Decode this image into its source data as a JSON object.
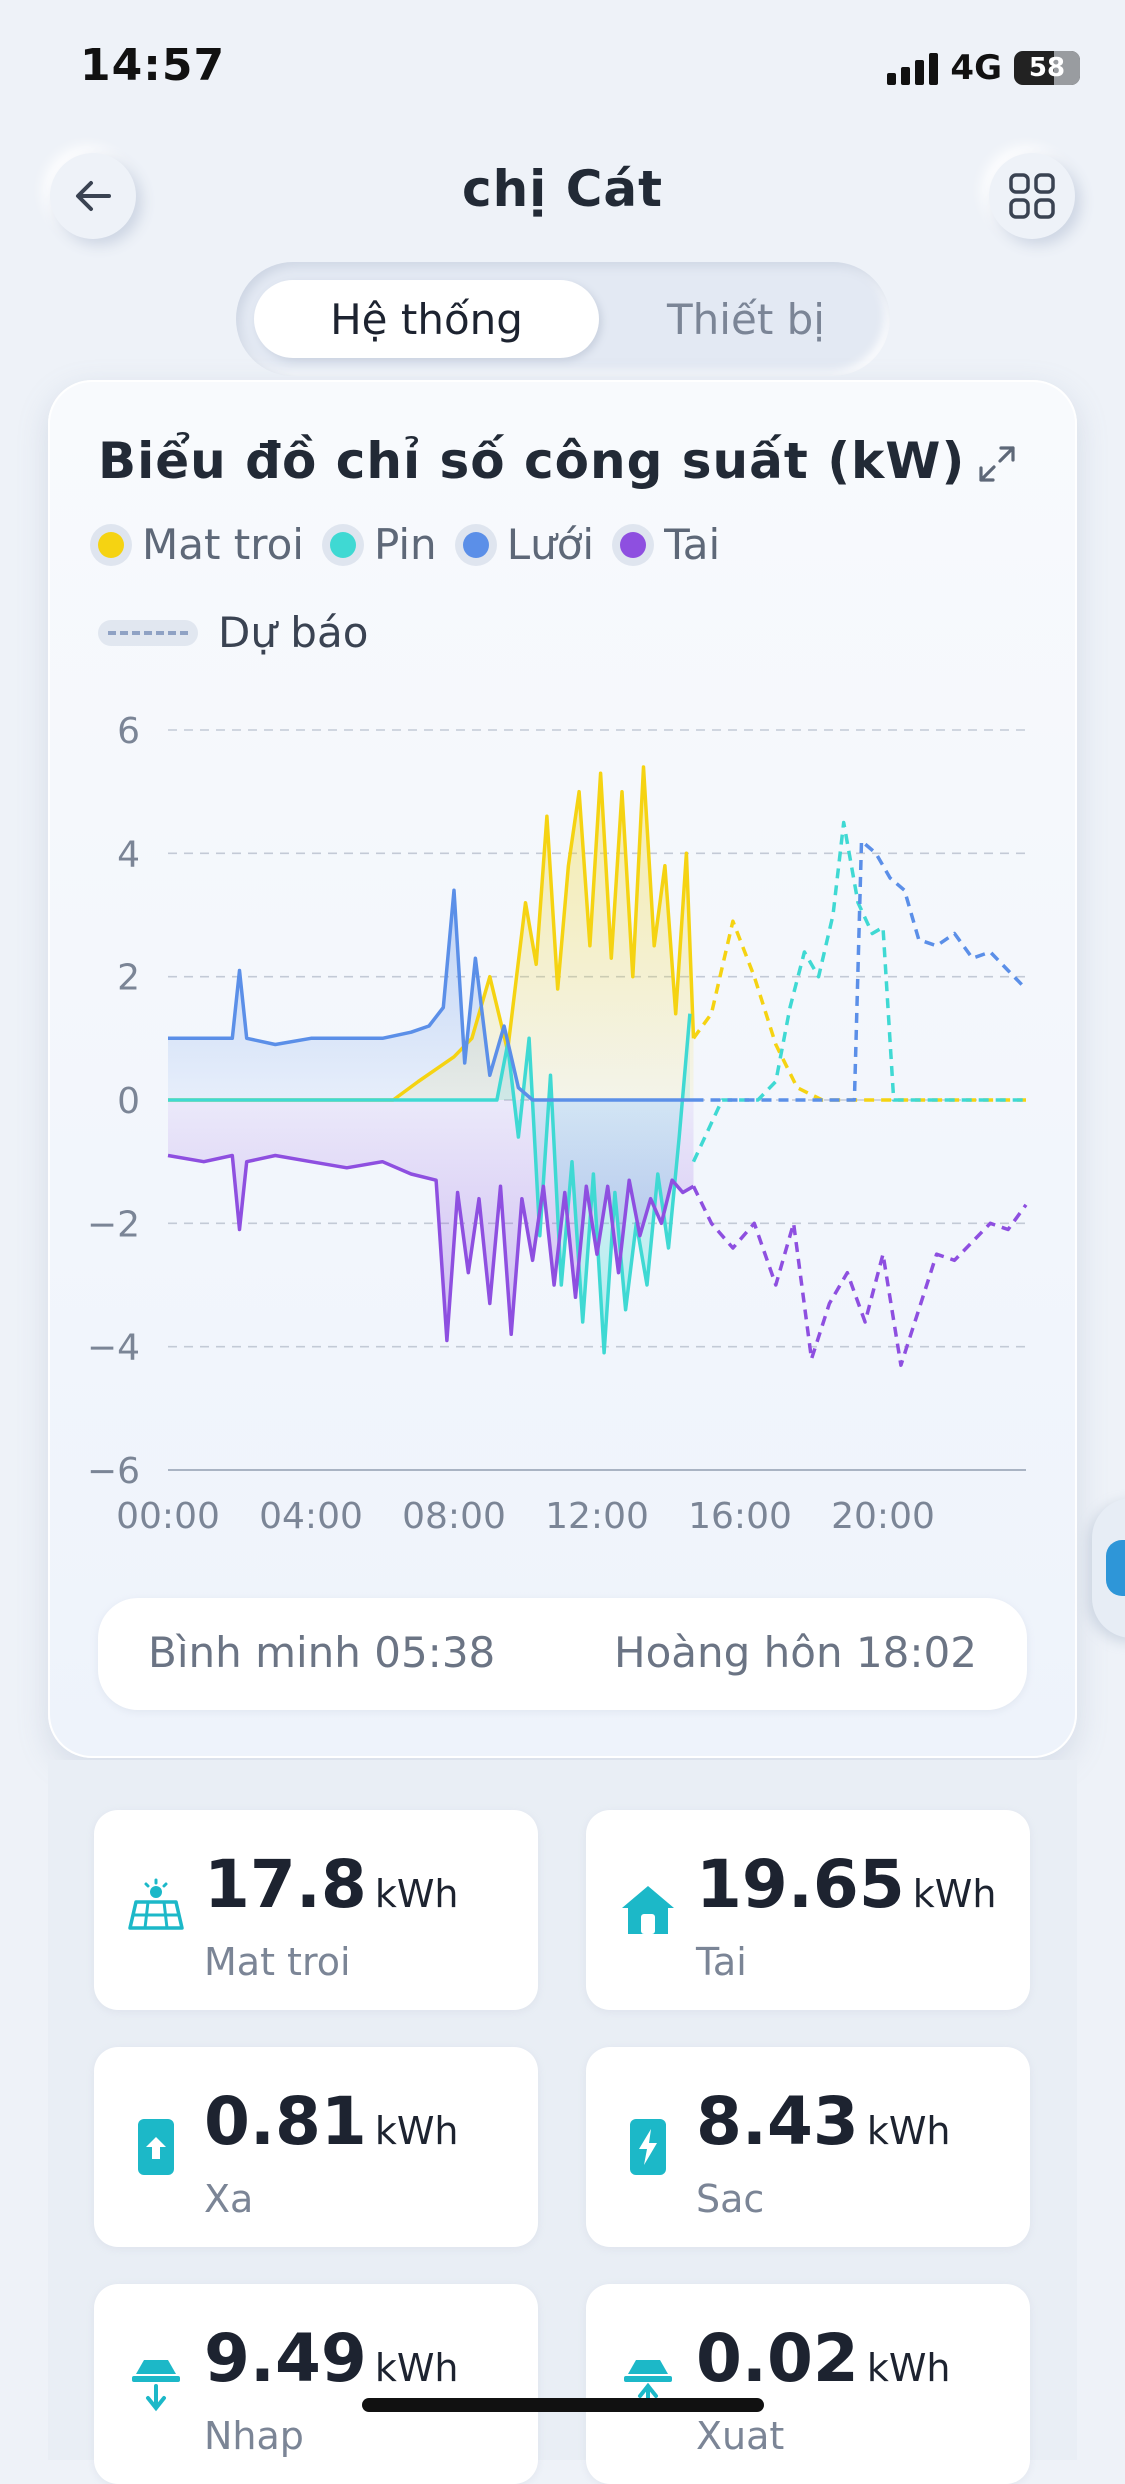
{
  "status_bar": {
    "time": "14:57",
    "network": "4G",
    "battery": "58"
  },
  "header": {
    "title": "chị Cát",
    "back_icon": "arrow-left-icon",
    "menu_icon": "grid-icon"
  },
  "tabs": [
    {
      "label": "Hệ thống",
      "active": true
    },
    {
      "label": "Thiết bị",
      "active": false
    }
  ],
  "chart_card": {
    "title": "Biểu đồ chỉ số công suất (kW)",
    "legend": [
      {
        "label": "Mat troi",
        "color": "#f5d312"
      },
      {
        "label": "Pin",
        "color": "#3fd9d3"
      },
      {
        "label": "Lưới",
        "color": "#5b8fe8"
      },
      {
        "label": "Tai",
        "color": "#8e4fe0"
      }
    ],
    "forecast_label": "Dự báo",
    "sunrise": "Bình minh 05:38",
    "sunset": "Hoàng hôn 18:02"
  },
  "chart_data": {
    "type": "line",
    "ylim": [
      -6,
      6
    ],
    "y_ticks": [
      "6",
      "4",
      "2",
      "0",
      "-2",
      "-4",
      "-6"
    ],
    "x_ticks": [
      "00:00",
      "04:00",
      "08:00",
      "12:00",
      "16:00",
      "20:00"
    ],
    "x_range_hours": [
      0,
      24
    ],
    "actual_until_hour": 14.7,
    "series": [
      {
        "name": "Mat troi",
        "color": "#f5d312",
        "x": [
          0,
          6.3,
          7,
          7.5,
          8,
          8.5,
          9,
          9.5,
          10,
          10.3,
          10.6,
          10.9,
          11.2,
          11.5,
          11.8,
          12.1,
          12.4,
          12.7,
          13,
          13.3,
          13.6,
          13.9,
          14.2,
          14.5,
          14.7
        ],
        "y": [
          0,
          0,
          0.3,
          0.5,
          0.7,
          1.0,
          2.0,
          0.8,
          3.2,
          2.2,
          4.6,
          1.8,
          3.8,
          5.0,
          2.5,
          5.3,
          2.3,
          5.0,
          2.0,
          5.4,
          2.5,
          3.8,
          1.4,
          4.0,
          1.0
        ]
      },
      {
        "name": "Pin",
        "color": "#3fd9d3",
        "x": [
          0,
          9.2,
          9.5,
          9.8,
          10.1,
          10.4,
          10.7,
          11,
          11.3,
          11.6,
          11.9,
          12.2,
          12.5,
          12.8,
          13.1,
          13.4,
          13.7,
          14,
          14.3,
          14.6
        ],
        "y": [
          0,
          0,
          0.9,
          -0.6,
          1.0,
          -2.2,
          0.4,
          -3.0,
          -1.0,
          -3.6,
          -1.2,
          -4.1,
          -1.5,
          -3.4,
          -2.0,
          -3.0,
          -1.2,
          -2.4,
          -0.6,
          1.4
        ]
      },
      {
        "name": "Lưới",
        "color": "#5b8fe8",
        "x": [
          0,
          1,
          1.8,
          2.0,
          2.2,
          3,
          4,
          5,
          6,
          6.8,
          7.3,
          7.7,
          8.0,
          8.3,
          8.6,
          9.0,
          9.4,
          9.8,
          10.2,
          14.7
        ],
        "y": [
          1.0,
          1.0,
          1.0,
          2.1,
          1.0,
          0.9,
          1.0,
          1.0,
          1.0,
          1.1,
          1.2,
          1.5,
          3.4,
          0.6,
          2.3,
          0.4,
          1.2,
          0.2,
          0,
          0
        ]
      },
      {
        "name": "Tai",
        "color": "#8e4fe0",
        "x": [
          0,
          1,
          1.8,
          2.0,
          2.2,
          3,
          4,
          5,
          6,
          6.8,
          7.5,
          7.8,
          8.1,
          8.4,
          8.7,
          9.0,
          9.3,
          9.6,
          9.9,
          10.2,
          10.5,
          10.8,
          11.1,
          11.4,
          11.7,
          12.0,
          12.3,
          12.6,
          12.9,
          13.2,
          13.5,
          13.8,
          14.1,
          14.4,
          14.7
        ],
        "y": [
          -0.9,
          -1.0,
          -0.9,
          -2.1,
          -1.0,
          -0.9,
          -1.0,
          -1.1,
          -1.0,
          -1.2,
          -1.3,
          -3.9,
          -1.5,
          -2.8,
          -1.6,
          -3.3,
          -1.4,
          -3.8,
          -1.6,
          -2.6,
          -1.4,
          -3.0,
          -1.5,
          -3.2,
          -1.4,
          -2.5,
          -1.4,
          -2.8,
          -1.3,
          -2.2,
          -1.6,
          -2.0,
          -1.3,
          -1.5,
          -1.4
        ]
      }
    ],
    "forecast_series": [
      {
        "name": "Mat troi",
        "color": "#f5d312",
        "x": [
          14.7,
          15.2,
          15.8,
          16.4,
          17.0,
          17.6,
          18.3,
          24
        ],
        "y": [
          1.0,
          1.4,
          2.9,
          2.0,
          0.9,
          0.2,
          0,
          0
        ]
      },
      {
        "name": "Pin",
        "color": "#3fd9d3",
        "x": [
          14.7,
          15.5,
          16.5,
          17.0,
          17.4,
          17.8,
          18.2,
          18.6,
          18.9,
          19.3,
          19.7,
          20.0,
          20.3,
          24
        ],
        "y": [
          -1.0,
          0,
          0,
          0.3,
          1.5,
          2.4,
          2.0,
          3.0,
          4.5,
          3.2,
          2.7,
          2.8,
          0,
          0
        ]
      },
      {
        "name": "Lưới",
        "color": "#5b8fe8",
        "x": [
          14.7,
          19.2,
          19.4,
          19.8,
          20.2,
          20.6,
          21.0,
          21.5,
          22.0,
          22.5,
          23.0,
          23.5,
          24
        ],
        "y": [
          0,
          0,
          4.2,
          4.0,
          3.6,
          3.4,
          2.6,
          2.5,
          2.7,
          2.3,
          2.4,
          2.1,
          1.8
        ]
      },
      {
        "name": "Tai",
        "color": "#8e4fe0",
        "x": [
          14.7,
          15.2,
          15.8,
          16.4,
          17.0,
          17.5,
          18.0,
          18.5,
          19.0,
          19.5,
          20.0,
          20.5,
          21.0,
          21.5,
          22.0,
          22.5,
          23.0,
          23.5,
          24
        ],
        "y": [
          -1.4,
          -2.0,
          -2.4,
          -2.0,
          -3.0,
          -2.0,
          -4.2,
          -3.3,
          -2.8,
          -3.6,
          -2.5,
          -4.3,
          -3.4,
          -2.5,
          -2.6,
          -2.3,
          -2.0,
          -2.1,
          -1.7
        ]
      }
    ]
  },
  "stats": [
    {
      "value": "17.8",
      "unit": "kWh",
      "label": "Mat troi",
      "icon": "solar-panel-icon"
    },
    {
      "value": "19.65",
      "unit": "kWh",
      "label": "Tai",
      "icon": "house-icon"
    },
    {
      "value": "0.81",
      "unit": "kWh",
      "label": "Xa",
      "icon": "battery-discharge-icon"
    },
    {
      "value": "8.43",
      "unit": "kWh",
      "label": "Sac",
      "icon": "battery-charge-icon"
    },
    {
      "value": "9.49",
      "unit": "kWh",
      "label": "Nhap",
      "icon": "grid-import-icon"
    },
    {
      "value": "0.02",
      "unit": "kWh",
      "label": "Xuat",
      "icon": "grid-export-icon"
    }
  ]
}
